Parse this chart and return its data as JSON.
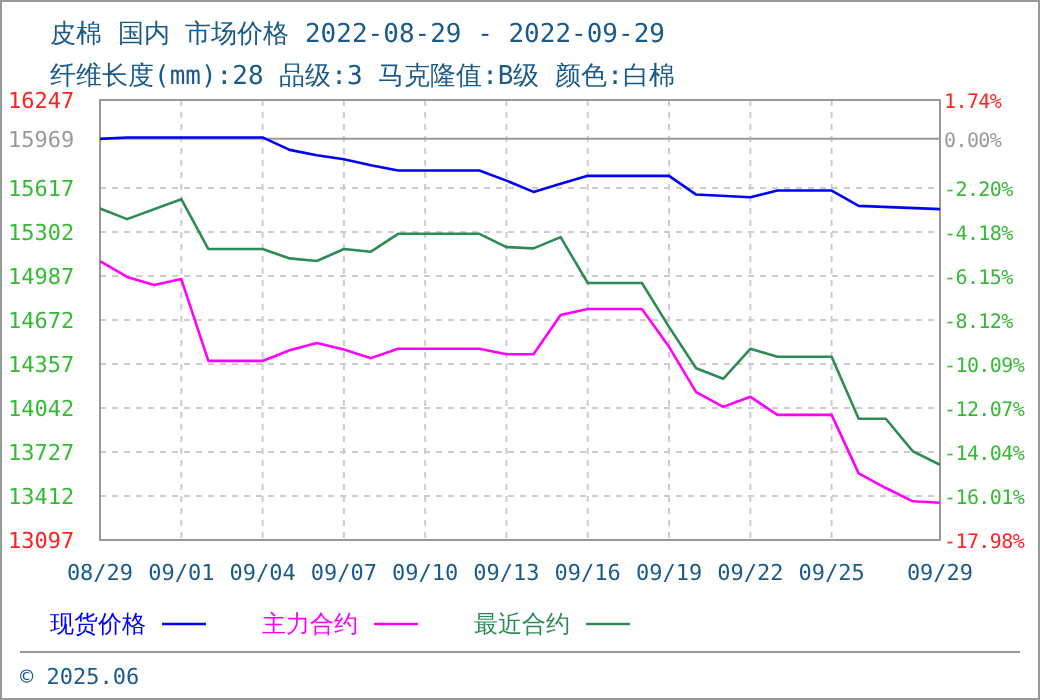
{
  "chart_data": {
    "type": "line",
    "title": "皮棉 国内 市场价格 2022-08-29 - 2022-09-29",
    "subtitle": "纤维长度(mm):28 品级:3 马克隆值:B级 颜色:白棉",
    "xlim": [
      "--08-29",
      "--09-29"
    ],
    "xticks": [
      {
        "value": "--08-29",
        "label": "08/29"
      },
      {
        "value": "--09-01",
        "label": "09/01"
      },
      {
        "value": "--09-04",
        "label": "09/04"
      },
      {
        "value": "--09-07",
        "label": "09/07"
      },
      {
        "value": "--09-10",
        "label": "09/10"
      },
      {
        "value": "--09-13",
        "label": "09/13"
      },
      {
        "value": "--09-16",
        "label": "09/16"
      },
      {
        "value": "--09-19",
        "label": "09/19"
      },
      {
        "value": "--09-22",
        "label": "09/22"
      },
      {
        "value": "--09-25",
        "label": "09/25"
      },
      {
        "value": "--09-29",
        "label": "09/29"
      }
    ],
    "ylim": [
      13097,
      16247
    ],
    "yticks": [
      13097,
      13412,
      13727,
      14042,
      14357,
      14672,
      14987,
      15302,
      15617,
      15969,
      16247
    ],
    "y2lim": [
      -17.98,
      1.74
    ],
    "y2ticks": [
      {
        "value": -17.98,
        "label": "-17.98%"
      },
      {
        "value": -16.01,
        "label": "-16.01%"
      },
      {
        "value": -14.04,
        "label": "-14.04%"
      },
      {
        "value": -12.07,
        "label": "-12.07%"
      },
      {
        "value": -10.09,
        "label": "-10.09%"
      },
      {
        "value": -8.12,
        "label": "-8.12%"
      },
      {
        "value": -6.15,
        "label": "-6.15%"
      },
      {
        "value": -4.18,
        "label": "-4.18%"
      },
      {
        "value": -2.2,
        "label": "-2.20%"
      },
      {
        "value": 0,
        "label": "0.00%"
      },
      {
        "value": 1.74,
        "label": "1.74%"
      }
    ],
    "grid": true,
    "legend": "bottom",
    "marker": "none",
    "line_style": "solid",
    "series": [
      {
        "name": "现货价格",
        "color": "#0000ff",
        "x": [
          "--08-29",
          "--08-30",
          "--09-04",
          "--09-05",
          "--09-06",
          "--09-07",
          "--09-08",
          "--09-09",
          "--09-12",
          "--09-13",
          "--09-14",
          "--09-15",
          "--09-16",
          "--09-19",
          "--09-20",
          "--09-22",
          "--09-23",
          "--09-25",
          "--09-26",
          "--09-29"
        ],
        "values": [
          15969,
          15979,
          15979,
          15890,
          15851,
          15823,
          15780,
          15742,
          15742,
          15670,
          15589,
          15647,
          15704,
          15704,
          15570,
          15551,
          15599,
          15599,
          15489,
          15466
        ]
      },
      {
        "name": "主力合约",
        "color": "#ff00ff",
        "x": [
          "--08-29",
          "--08-30",
          "--08-31",
          "--09-01",
          "--09-02",
          "--09-04",
          "--09-05",
          "--09-06",
          "--09-07",
          "--09-08",
          "--09-09",
          "--09-12",
          "--09-13",
          "--09-14",
          "--09-15",
          "--09-16",
          "--09-18",
          "--09-19",
          "--09-20",
          "--09-21",
          "--09-22",
          "--09-23",
          "--09-25",
          "--09-26",
          "--09-27",
          "--09-28",
          "--09-29"
        ],
        "values": [
          15094,
          14980,
          14922,
          14965,
          14379,
          14379,
          14456,
          14508,
          14461,
          14399,
          14466,
          14466,
          14427,
          14427,
          14708,
          14751,
          14751,
          14480,
          14156,
          14050,
          14122,
          13993,
          13993,
          13574,
          13469,
          13374,
          13364
        ]
      },
      {
        "name": "最近合约",
        "color": "#2e8b57",
        "x": [
          "--08-29",
          "--08-30",
          "--09-01",
          "--09-02",
          "--09-04",
          "--09-05",
          "--09-06",
          "--09-07",
          "--09-08",
          "--09-09",
          "--09-12",
          "--09-13",
          "--09-14",
          "--09-15",
          "--09-16",
          "--09-18",
          "--09-19",
          "--09-20",
          "--09-21",
          "--09-22",
          "--09-23",
          "--09-25",
          "--09-26",
          "--09-27",
          "--09-28",
          "--09-29"
        ],
        "values": [
          15470,
          15394,
          15537,
          15180,
          15180,
          15113,
          15094,
          15180,
          15161,
          15289,
          15289,
          15194,
          15185,
          15265,
          14937,
          14937,
          14623,
          14327,
          14251,
          14466,
          14409,
          14409,
          13965,
          13965,
          13732,
          13636
        ]
      }
    ],
    "annotations": [
      "© 2025.06"
    ]
  }
}
